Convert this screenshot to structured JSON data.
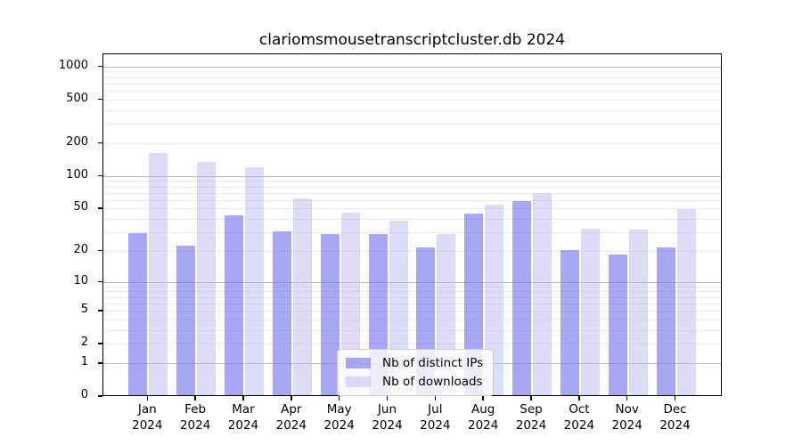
{
  "title": "clariomsmousetranscriptcluster.db 2024",
  "chart_data": {
    "type": "bar",
    "title": "clariomsmousetranscriptcluster.db 2024",
    "categories": [
      "Jan",
      "Feb",
      "Mar",
      "Apr",
      "May",
      "Jun",
      "Jul",
      "Aug",
      "Sep",
      "Oct",
      "Nov",
      "Dec"
    ],
    "category_year": "2024",
    "series": [
      {
        "name": "Nb of distinct IPs",
        "color": "#a8a8f2",
        "fill": "rgba(130,130,238,0.7)",
        "values": [
          29,
          22,
          42,
          30,
          28,
          28,
          21,
          44,
          57,
          20,
          18,
          21
        ]
      },
      {
        "name": "Nb of downloads",
        "color": "#dcdcf7",
        "fill": "rgba(185,185,239,0.5)",
        "values": [
          160,
          131,
          117,
          61,
          45,
          38,
          28,
          53,
          68,
          32,
          31,
          48
        ]
      }
    ],
    "xlabel": "",
    "ylabel": "",
    "y_scale": "log1p",
    "y_ticks": [
      0,
      1,
      2,
      5,
      10,
      20,
      50,
      100,
      200,
      500,
      1000
    ],
    "y_major_gridlines": [
      1,
      10,
      100,
      1000
    ],
    "y_minor_gridlines": [
      2,
      3,
      4,
      5,
      6,
      7,
      8,
      9,
      20,
      30,
      40,
      50,
      60,
      70,
      80,
      90,
      200,
      300,
      400,
      500,
      600,
      700,
      800,
      900
    ],
    "ylim_top_value": 1290,
    "grid": true,
    "legend_position": "bottom-center",
    "colors": {
      "axis": "#000000",
      "major_grid": "#b8b8b8",
      "minor_grid": "#ebebeb",
      "background": "#ffffff"
    }
  },
  "legend": {
    "items": [
      {
        "label": "Nb of distinct IPs"
      },
      {
        "label": "Nb of downloads"
      }
    ]
  }
}
